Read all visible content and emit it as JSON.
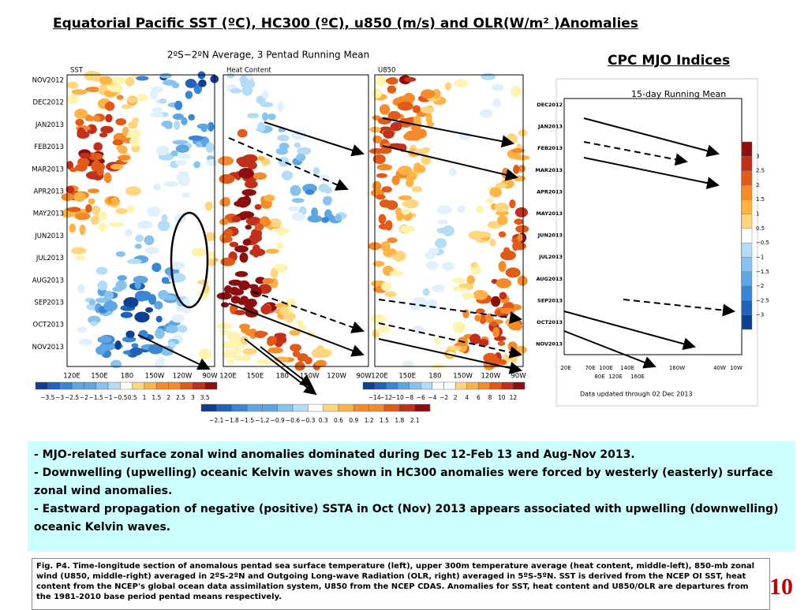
{
  "header": {
    "title": "Equatorial Pacific SST (ºC), HC300 (ºC), u850  (m/s) and OLR(W/m² )Anomalies",
    "subtitle": "CPC MJO Indices"
  },
  "figure_left": {
    "title": "2ºS−2ºN Average, 3 Pentad Running Mean",
    "y_labels": [
      "NOV2012",
      "DEC2012",
      "JAN2013",
      "FEB2013",
      "MAR2013",
      "APR2013",
      "MAY2013",
      "JUN2013",
      "JUL2013",
      "AUG2013",
      "SEP2013",
      "OCT2013",
      "NOV2013"
    ],
    "panels": [
      {
        "label": "SST",
        "x_labels": [
          "120E",
          "150E",
          "180",
          "150W",
          "120W",
          "90W"
        ]
      },
      {
        "label": "Heat Content",
        "x_labels": [
          "120E",
          "150E",
          "180",
          "150W",
          "120W",
          "90W"
        ]
      },
      {
        "label": "U850",
        "x_labels": [
          "120E",
          "150E",
          "180",
          "150W",
          "120W",
          "90W"
        ]
      }
    ],
    "colorbars": [
      {
        "labels": [
          "−3.5",
          "−3",
          "−2.5",
          "−2",
          "−1.5",
          "−1",
          "−0.5",
          "0.5",
          "1",
          "1.5",
          "2",
          "2.5",
          "3",
          "3.5"
        ]
      },
      {
        "labels": [
          "−2.1",
          "−1.8",
          "−1.5",
          "−1.2",
          "−0.9",
          "−0.6",
          "−0.3",
          "0.3",
          "0.6",
          "0.9",
          "1.2",
          "1.5",
          "1.8",
          "2.1"
        ]
      },
      {
        "labels": [
          "−14",
          "−12",
          "−10",
          "−8",
          "−6",
          "−4",
          "−2",
          "2",
          "4",
          "6",
          "8",
          "10",
          "12"
        ]
      }
    ]
  },
  "figure_right": {
    "title": "15-day Running Mean",
    "y_labels": [
      "DEC2012",
      "JAN2013",
      "FEB2013",
      "MAR2013",
      "APR2013",
      "MAY2013",
      "JUN2013",
      "JUL2013",
      "AUG2013",
      "SEP2013",
      "OCT2013",
      "NOV2013"
    ],
    "x_labels": [
      "20E",
      "70E",
      "100E",
      "140E",
      "160W",
      "40W",
      "10W"
    ],
    "x_labels_2": [
      "80E",
      "120E",
      "160E"
    ],
    "colorbar_labels": [
      "3",
      "2.5",
      "2",
      "1.5",
      "1",
      "0.5",
      "−0.5",
      "−1",
      "−1.5",
      "−2",
      "−2.5",
      "−3"
    ],
    "note": "Data updated through 02 Dec 2013"
  },
  "bullets": [
    "- MJO-related surface zonal wind anomalies dominated during Dec 12-Feb 13 and Aug-Nov 2013.",
    "- Downwelling (upwelling) oceanic Kelvin waves shown in HC300 anomalies were forced by westerly (easterly) surface zonal wind anomalies.",
    "- Eastward propagation of negative (positive) SSTA in Oct (Nov) 2013 appears associated with upwelling (downwelling) oceanic Kelvin waves."
  ],
  "caption": "Fig. P4. Time-longitude section of anomalous pentad sea surface temperature (left), upper 300m temperature average (heat content, middle-left), 850-mb zonal wind (U850, middle-right) averaged in 2ºS-2ºN and Outgoing Long-wave Radiation (OLR, right) averaged in 5ºS-5ºN. SST is derived from the NCEP OI SST, heat content from the NCEP's global ocean data assimilation system, U850 from the NCEP CDAS. Anomalies for SST, heat content and U850/OLR are departures from the 1981-2010 base period pentad means respectively.",
  "page_number": "10"
}
